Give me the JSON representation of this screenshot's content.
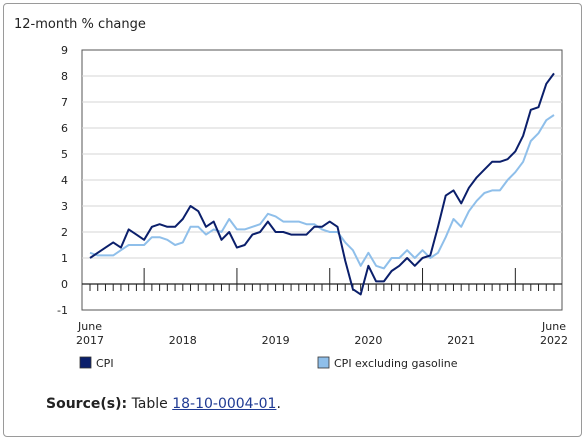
{
  "chart_data": {
    "type": "line",
    "ylabel": "12-month % change",
    "ylim": [
      -1,
      9
    ],
    "yticks": [
      -1,
      0,
      1,
      2,
      3,
      4,
      5,
      6,
      7,
      8,
      9
    ],
    "x_start": "2017-06",
    "x_end": "2022-06",
    "x_labels": [
      {
        "month": "2017-06",
        "line1": "June",
        "line2": "2017"
      },
      {
        "month": "2018-06",
        "line1": "",
        "line2": "2018"
      },
      {
        "month": "2019-06",
        "line1": "",
        "line2": "2019"
      },
      {
        "month": "2020-06",
        "line1": "",
        "line2": "2020"
      },
      {
        "month": "2021-06",
        "line1": "",
        "line2": "2021"
      },
      {
        "month": "2022-06",
        "line1": "June",
        "line2": "2022"
      }
    ],
    "series": [
      {
        "name": "CPI",
        "color": "#0b1f6b",
        "values": [
          1.0,
          1.2,
          1.4,
          1.6,
          1.4,
          2.1,
          1.9,
          1.7,
          2.2,
          2.3,
          2.2,
          2.2,
          2.5,
          3.0,
          2.8,
          2.2,
          2.4,
          1.7,
          2.0,
          1.4,
          1.5,
          1.9,
          2.0,
          2.4,
          2.0,
          2.0,
          1.9,
          1.9,
          1.9,
          2.2,
          2.2,
          2.4,
          2.2,
          0.9,
          -0.2,
          -0.4,
          0.7,
          0.1,
          0.1,
          0.5,
          0.7,
          1.0,
          0.7,
          1.0,
          1.1,
          2.2,
          3.4,
          3.6,
          3.1,
          3.7,
          4.1,
          4.4,
          4.7,
          4.7,
          4.8,
          5.1,
          5.7,
          6.7,
          6.8,
          7.7,
          8.1
        ]
      },
      {
        "name": "CPI excluding gasoline",
        "color": "#8fbfea",
        "values": [
          1.2,
          1.1,
          1.1,
          1.1,
          1.3,
          1.5,
          1.5,
          1.5,
          1.8,
          1.8,
          1.7,
          1.5,
          1.6,
          2.2,
          2.2,
          1.9,
          2.1,
          2.0,
          2.5,
          2.1,
          2.1,
          2.2,
          2.3,
          2.7,
          2.6,
          2.4,
          2.4,
          2.4,
          2.3,
          2.3,
          2.1,
          2.0,
          2.0,
          1.6,
          1.3,
          0.7,
          1.2,
          0.7,
          0.6,
          1.0,
          1.0,
          1.3,
          1.0,
          1.3,
          1.0,
          1.2,
          1.8,
          2.5,
          2.2,
          2.8,
          3.2,
          3.5,
          3.6,
          3.6,
          4.0,
          4.3,
          4.7,
          5.5,
          5.8,
          6.3,
          6.5
        ]
      }
    ]
  },
  "legend": {
    "items": [
      {
        "label": "CPI",
        "color": "#0b1f6b"
      },
      {
        "label": "CPI excluding gasoline",
        "color": "#8fbfea"
      }
    ]
  },
  "source": {
    "label": "Source(s):",
    "text_before": "Table ",
    "link_text": "18-10-0004-01",
    "text_after": "."
  }
}
